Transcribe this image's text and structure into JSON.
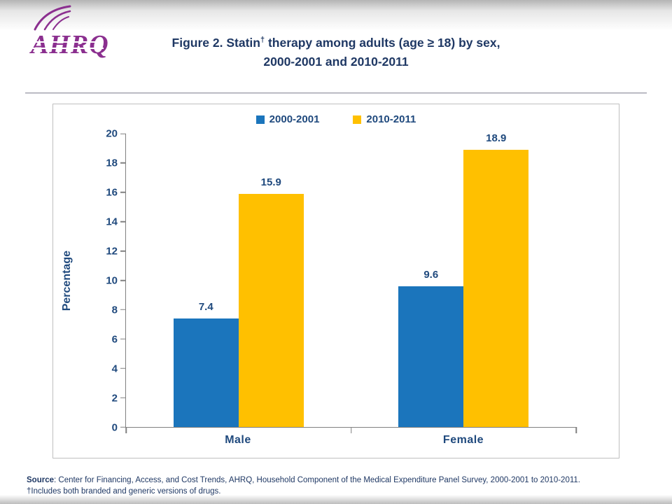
{
  "slide": {
    "logo_text": "AHRQ",
    "title": {
      "prefix": "Figure 2. Statin",
      "sup": "†",
      "suffix": " therapy among adults (age ≥ 18) by sex,",
      "line2": "2000-2001 and 2010-2011"
    },
    "footer": {
      "source_label": "Source",
      "source_text": ": Center for Financing, Access, and Cost Trends, AHRQ, Household Component of the Medical Expenditure Panel Survey, 2000-2001 to 2010-2011.",
      "footnote": "†Includes both branded and generic versions of drugs."
    }
  },
  "chart_data": {
    "type": "bar",
    "title": "Figure 2. Statin† therapy among adults (age ≥ 18) by sex, 2000-2001 and 2010-2011",
    "categories": [
      "Male",
      "Female"
    ],
    "series": [
      {
        "name": "2000-2001",
        "color": "#1B75BC",
        "values": [
          7.4,
          9.6
        ]
      },
      {
        "name": "2010-2011",
        "color": "#FFC000",
        "values": [
          15.9,
          18.9
        ]
      }
    ],
    "ylabel": "Percentage",
    "xlabel": "",
    "ylim": [
      0,
      20
    ],
    "ytick_step": 2,
    "grid": false,
    "legend_position": "top",
    "data_labels": true
  },
  "colors": {
    "title_navy": "#1F3864",
    "chart_text": "#1F497D",
    "bar_blue": "#1B75BC",
    "bar_yellow": "#FFC000",
    "logo_purple": "#8B2F8F",
    "axis_gray": "#808080"
  }
}
